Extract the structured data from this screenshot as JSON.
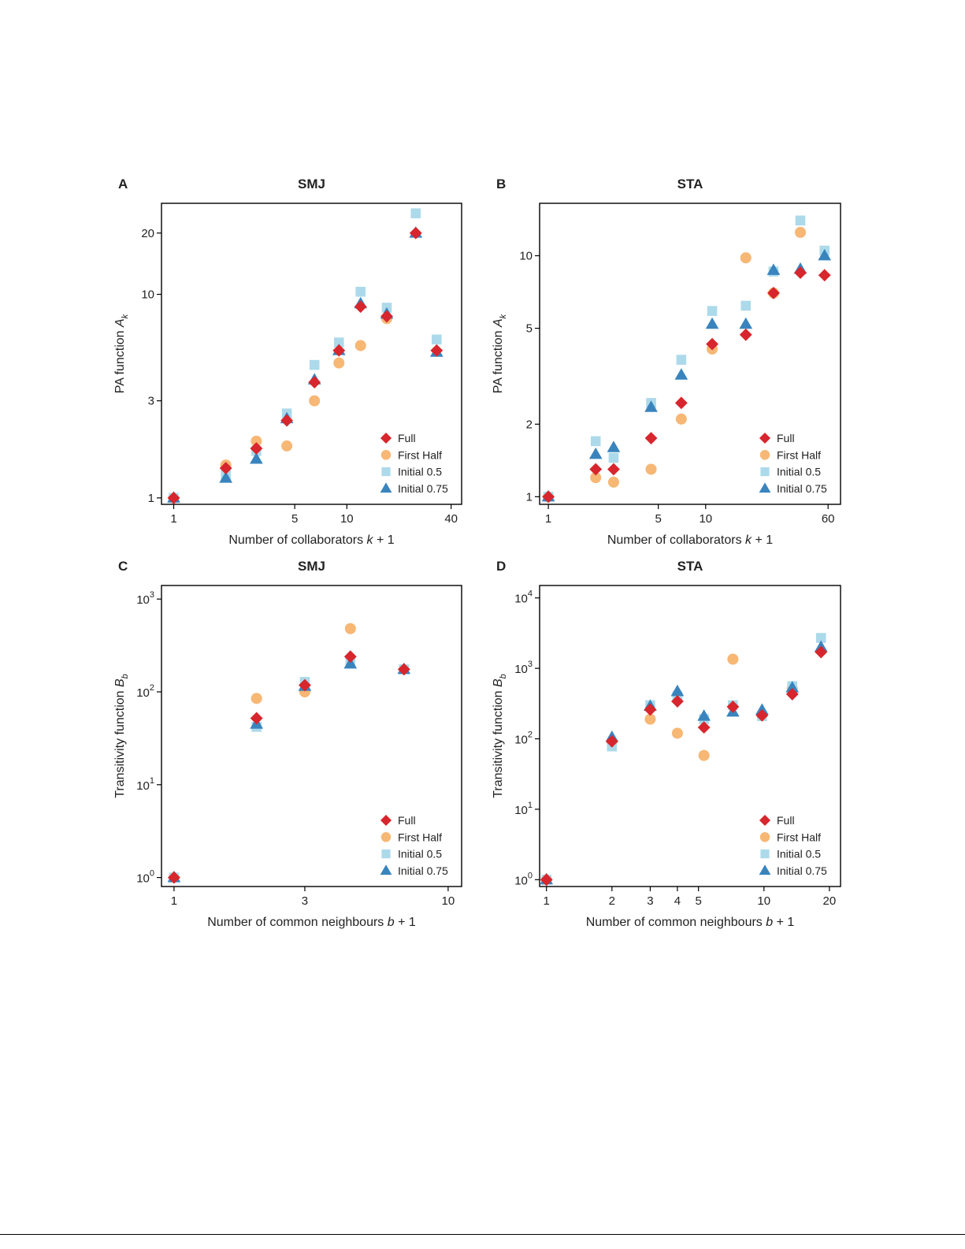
{
  "series_style": {
    "full": {
      "label": "Full",
      "color": "#d7262d",
      "marker": "diamond"
    },
    "first_half": {
      "label": "First Half",
      "color": "#f7b775",
      "marker": "circle"
    },
    "initial_05": {
      "label": "Initial 0.5",
      "color": "#acdaea",
      "marker": "square"
    },
    "initial_075": {
      "label": "Initial 0.75",
      "color": "#3a84bd",
      "marker": "triangle"
    }
  },
  "chart_data": [
    {
      "id": "A",
      "panel": "A",
      "title": "SMJ",
      "type": "scatter",
      "xlabel": "Number of collaborators",
      "xlabel_var": "k",
      "xlabel_suffix": " + 1",
      "ylabel": "PA function",
      "ylabel_var": "A",
      "ylabel_sub": "k",
      "xscale": "log",
      "yscale": "log",
      "xlim": [
        0.85,
        46
      ],
      "ylim": [
        0.93,
        28
      ],
      "xticks": [
        {
          "v": 1,
          "label": "1"
        },
        {
          "v": 5,
          "label": "5"
        },
        {
          "v": 10,
          "label": "10"
        },
        {
          "v": 40,
          "label": "40"
        }
      ],
      "yticks": [
        {
          "v": 1,
          "label": "1"
        },
        {
          "v": 3,
          "label": "3"
        },
        {
          "v": 10,
          "label": "10"
        },
        {
          "v": 20,
          "label": "20"
        }
      ],
      "legend_position": "bottom-right",
      "series": {
        "first_half": {
          "x": [
            1,
            2,
            3,
            4.5,
            6.5,
            9,
            12,
            17
          ],
          "y": [
            1.0,
            1.45,
            1.9,
            1.8,
            3.0,
            4.6,
            5.6,
            7.6
          ]
        },
        "initial_05": {
          "x": [
            1,
            2,
            3,
            4.5,
            6.5,
            9,
            12,
            17,
            25,
            33
          ],
          "y": [
            1.0,
            1.3,
            1.7,
            2.6,
            4.5,
            5.8,
            10.3,
            8.6,
            25.0,
            6.0
          ]
        },
        "initial_075": {
          "x": [
            1,
            2,
            3,
            4.5,
            6.5,
            9,
            12,
            17,
            25,
            33
          ],
          "y": [
            1.0,
            1.25,
            1.55,
            2.45,
            3.8,
            5.3,
            9.0,
            8.0,
            20.0,
            5.2
          ]
        },
        "full": {
          "x": [
            1,
            2,
            3,
            4.5,
            6.5,
            9,
            12,
            17,
            25,
            33
          ],
          "y": [
            1.0,
            1.4,
            1.75,
            2.4,
            3.7,
            5.3,
            8.7,
            7.8,
            20.0,
            5.3
          ]
        }
      }
    },
    {
      "id": "B",
      "panel": "B",
      "title": "STA",
      "type": "scatter",
      "xlabel": "Number of collaborators",
      "xlabel_var": "k",
      "xlabel_suffix": " + 1",
      "ylabel": "PA function",
      "ylabel_var": "A",
      "ylabel_sub": "k",
      "xscale": "log",
      "yscale": "log",
      "xlim": [
        0.88,
        72
      ],
      "ylim": [
        0.93,
        16.5
      ],
      "xticks": [
        {
          "v": 1,
          "label": "1"
        },
        {
          "v": 5,
          "label": "5"
        },
        {
          "v": 10,
          "label": "10"
        },
        {
          "v": 60,
          "label": "60"
        }
      ],
      "yticks": [
        {
          "v": 1,
          "label": "1"
        },
        {
          "v": 2,
          "label": "2"
        },
        {
          "v": 5,
          "label": "5"
        },
        {
          "v": 10,
          "label": "10"
        }
      ],
      "legend_position": "bottom-right",
      "series": {
        "first_half": {
          "x": [
            1,
            2,
            2.6,
            4.5,
            7,
            11,
            18,
            27,
            40
          ],
          "y": [
            1.0,
            1.2,
            1.15,
            1.3,
            2.1,
            4.1,
            9.8,
            7.0,
            12.5
          ]
        },
        "initial_05": {
          "x": [
            1,
            2,
            2.6,
            4.5,
            7,
            11,
            18,
            27,
            40,
            57
          ],
          "y": [
            1.0,
            1.7,
            1.45,
            2.45,
            3.7,
            5.9,
            6.2,
            8.6,
            14.0,
            10.5
          ]
        },
        "initial_075": {
          "x": [
            1,
            2,
            2.6,
            4.5,
            7,
            11,
            18,
            27,
            40,
            57
          ],
          "y": [
            1.0,
            1.5,
            1.6,
            2.35,
            3.2,
            5.2,
            5.2,
            8.7,
            8.8,
            10.0
          ]
        },
        "full": {
          "x": [
            1,
            2,
            2.6,
            4.5,
            7,
            11,
            18,
            27,
            40,
            57
          ],
          "y": [
            1.0,
            1.3,
            1.3,
            1.75,
            2.45,
            4.3,
            4.7,
            7.0,
            8.5,
            8.3
          ]
        }
      }
    },
    {
      "id": "C",
      "panel": "C",
      "title": "SMJ",
      "type": "scatter",
      "xlabel": "Number of common neighbours",
      "xlabel_var": "b",
      "xlabel_suffix": " + 1",
      "ylabel": "Transitivity function",
      "ylabel_var": "B",
      "ylabel_sub": "b",
      "xscale": "log",
      "yscale": "log",
      "xlim": [
        0.9,
        11.2
      ],
      "ylim": [
        0.8,
        1400
      ],
      "xticks": [
        {
          "v": 1,
          "label": "1"
        },
        {
          "v": 3,
          "label": "3"
        },
        {
          "v": 10,
          "label": "10"
        }
      ],
      "yticks": [
        {
          "v": 1,
          "base": "10",
          "exp": "0"
        },
        {
          "v": 10,
          "base": "10",
          "exp": "1"
        },
        {
          "v": 100,
          "base": "10",
          "exp": "2"
        },
        {
          "v": 1000,
          "base": "10",
          "exp": "3"
        }
      ],
      "legend_position": "bottom-right",
      "series": {
        "first_half": {
          "x": [
            1,
            2,
            3,
            4.4
          ],
          "y": [
            1,
            85,
            100,
            480
          ]
        },
        "initial_05": {
          "x": [
            1,
            2,
            3,
            4.4,
            6.9
          ],
          "y": [
            1,
            42,
            128,
            210,
            175
          ]
        },
        "initial_075": {
          "x": [
            1,
            2,
            3,
            4.4,
            6.9
          ],
          "y": [
            1,
            45,
            115,
            200,
            175
          ]
        },
        "full": {
          "x": [
            1,
            2,
            3,
            4.4,
            6.9
          ],
          "y": [
            1,
            52,
            118,
            240,
            175
          ]
        }
      }
    },
    {
      "id": "D",
      "panel": "D",
      "title": "STA",
      "type": "scatter",
      "xlabel": "Number of common neighbours",
      "xlabel_var": "b",
      "xlabel_suffix": " + 1",
      "ylabel": "Transitivity function",
      "ylabel_var": "B",
      "ylabel_sub": "b",
      "xscale": "log",
      "yscale": "log",
      "xlim": [
        0.93,
        22.5
      ],
      "ylim": [
        0.8,
        15000
      ],
      "xticks": [
        {
          "v": 1,
          "label": "1"
        },
        {
          "v": 2,
          "label": "2"
        },
        {
          "v": 3,
          "label": "3"
        },
        {
          "v": 4,
          "label": "4"
        },
        {
          "v": 5,
          "label": "5"
        },
        {
          "v": 10,
          "label": "10"
        },
        {
          "v": 20,
          "label": "20"
        }
      ],
      "yticks": [
        {
          "v": 1,
          "base": "10",
          "exp": "0"
        },
        {
          "v": 10,
          "base": "10",
          "exp": "1"
        },
        {
          "v": 100,
          "base": "10",
          "exp": "2"
        },
        {
          "v": 1000,
          "base": "10",
          "exp": "3"
        },
        {
          "v": 10000,
          "base": "10",
          "exp": "4"
        }
      ],
      "legend_position": "bottom-right",
      "series": {
        "first_half": {
          "x": [
            1,
            2,
            3,
            4,
            5.3,
            7.2,
            13.5
          ],
          "y": [
            1,
            90,
            190,
            120,
            58,
            1350,
            520
          ]
        },
        "initial_05": {
          "x": [
            1,
            2,
            3,
            4,
            5.3,
            7.2,
            9.8,
            13.5,
            18.3
          ],
          "y": [
            1,
            78,
            300,
            400,
            190,
            300,
            210,
            560,
            2700
          ]
        },
        "initial_075": {
          "x": [
            1,
            2,
            3,
            4,
            5.3,
            7.2,
            9.8,
            13.5,
            18.3
          ],
          "y": [
            1,
            105,
            290,
            470,
            210,
            240,
            255,
            530,
            2000
          ]
        },
        "full": {
          "x": [
            1,
            2,
            3,
            4,
            5.3,
            7.2,
            9.8,
            13.5,
            18.3
          ],
          "y": [
            1,
            92,
            260,
            340,
            145,
            285,
            215,
            430,
            1700
          ]
        }
      }
    }
  ]
}
